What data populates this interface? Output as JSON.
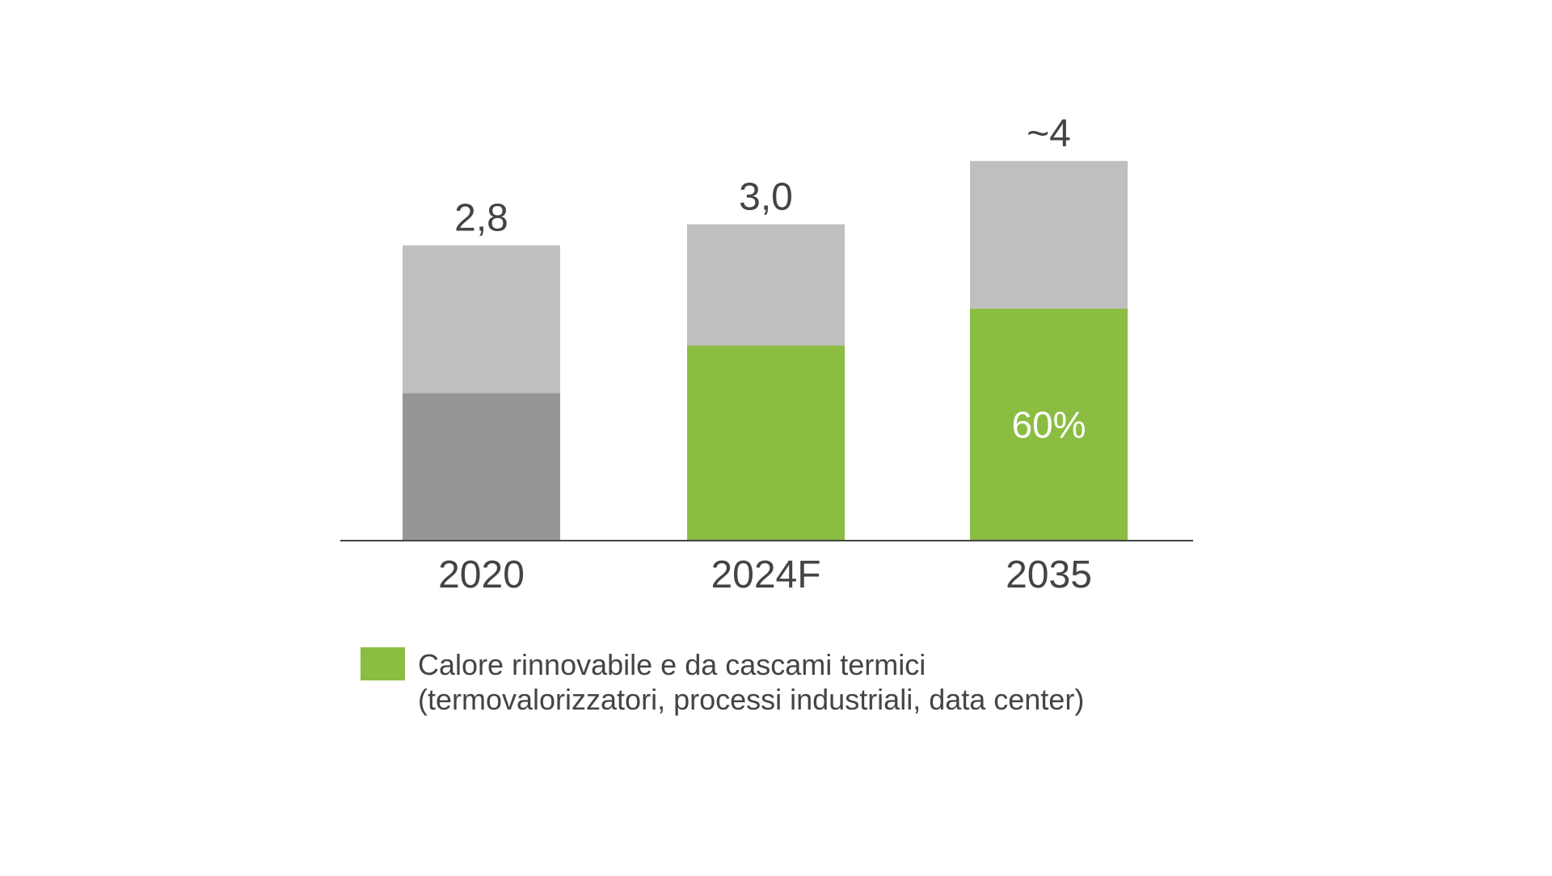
{
  "chart_data": {
    "type": "bar",
    "stacked": true,
    "categories": [
      "2020",
      "2024F",
      "2035"
    ],
    "totals": [
      2.8,
      3.0,
      3.6
    ],
    "total_labels": [
      "2,8",
      "3,0",
      "~4"
    ],
    "series": [
      {
        "name": "Calore rinnovabile e da cascami termici (termovalorizzatori, processi industriali, data center)",
        "values": [
          1.4,
          1.85,
          2.2
        ],
        "colors": [
          "#969696",
          "#8bbd42",
          "#8bbd42"
        ]
      },
      {
        "values": [
          1.4,
          1.15,
          1.4
        ],
        "colors": [
          "#bfbfbf",
          "#bfbfbf",
          "#bfbfbf"
        ]
      }
    ],
    "segment_labels": [
      "",
      "",
      "60%"
    ],
    "legend": {
      "color": "#8bbd42",
      "lines": [
        "Calore rinnovabile e da cascami termici",
        "(termovalorizzatori, processi industriali, data center)"
      ],
      "placement": "bottom"
    },
    "ylim": [
      0,
      3.6
    ],
    "grid": false,
    "axis_color": "#444444",
    "text_color": "#444444"
  }
}
